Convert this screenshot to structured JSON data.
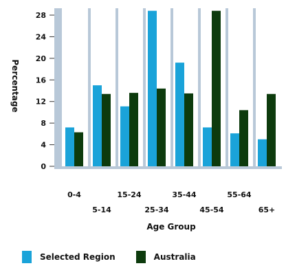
{
  "chart_data": {
    "type": "bar",
    "title": "",
    "xlabel": "Age Group",
    "ylabel": "Percentage",
    "categories": [
      "0-4",
      "5-14",
      "15-24",
      "25-34",
      "35-44",
      "45-54",
      "55-64",
      "65+"
    ],
    "series": [
      {
        "name": "Selected Region",
        "color": "#1aa3d9",
        "values": [
          7.2,
          15.0,
          11.1,
          28.8,
          19.2,
          7.2,
          6.1,
          5.0
        ]
      },
      {
        "name": "Australia",
        "color": "#0d3b0d",
        "values": [
          6.3,
          13.4,
          13.6,
          14.4,
          13.5,
          28.8,
          10.4,
          13.4
        ]
      }
    ],
    "ylim": [
      0,
      30
    ],
    "yticks": [
      0,
      4,
      8,
      12,
      16,
      20,
      24,
      28
    ],
    "grid": false,
    "legend_position": "bottom-left",
    "colors": {
      "axis_bg": "#b8c8d8",
      "background": "#ffffff"
    }
  }
}
